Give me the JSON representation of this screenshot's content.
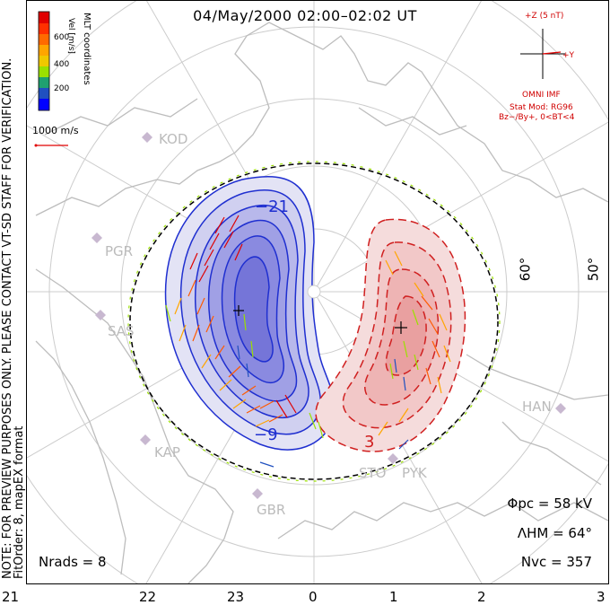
{
  "title": "04/May/2000 02:00–02:02 UT",
  "side_note": {
    "line1": "NOTE: FOR PREVIEW PURPOSES ONLY. PLEASE CONTACT VT-SD STAFF FOR VERIFICATION.",
    "line2": "FitOrder: 8, mapEX format"
  },
  "colorbar": {
    "title": "Vel [m/s]",
    "coords": "MLT coordinates",
    "ticks": [
      "600",
      "400",
      "200"
    ],
    "colors": [
      "#e00000",
      "#ff5a00",
      "#ffa500",
      "#f0c800",
      "#9be000",
      "#30c040",
      "#20a080",
      "#2050c0",
      "#0000ff"
    ]
  },
  "velocity_scale": "1000 m/s",
  "imf": {
    "z_label": "+Z (5 nT)",
    "y_label": "+Y",
    "source": "OMNI IMF",
    "model": "Stat Mod: RG96",
    "condition": "Bz−/By+, 0<BT<4"
  },
  "stations": [
    "KOD",
    "PGR",
    "SAS",
    "KAP",
    "GBR",
    "STO",
    "PYK",
    "HAN"
  ],
  "latitude_labels": [
    "60°",
    "50°"
  ],
  "contour_labels": [
    "−21",
    "−9",
    "3"
  ],
  "stats": {
    "phi_pc": "Φpc = 58 kV",
    "lambda_hm": "ΛHM = 64°",
    "n_vc": "Nvc = 357"
  },
  "n_rads": "Nrads = 8",
  "mlt_ticks": [
    "21",
    "22",
    "23",
    "0",
    "1",
    "2",
    "3"
  ],
  "map_data": {
    "potential_min_kV": -21,
    "potential_max_kV": 3,
    "cross_polar_potential_kV": 58,
    "heppner_maynard_lat_deg": 64,
    "num_vectors": 357
  }
}
